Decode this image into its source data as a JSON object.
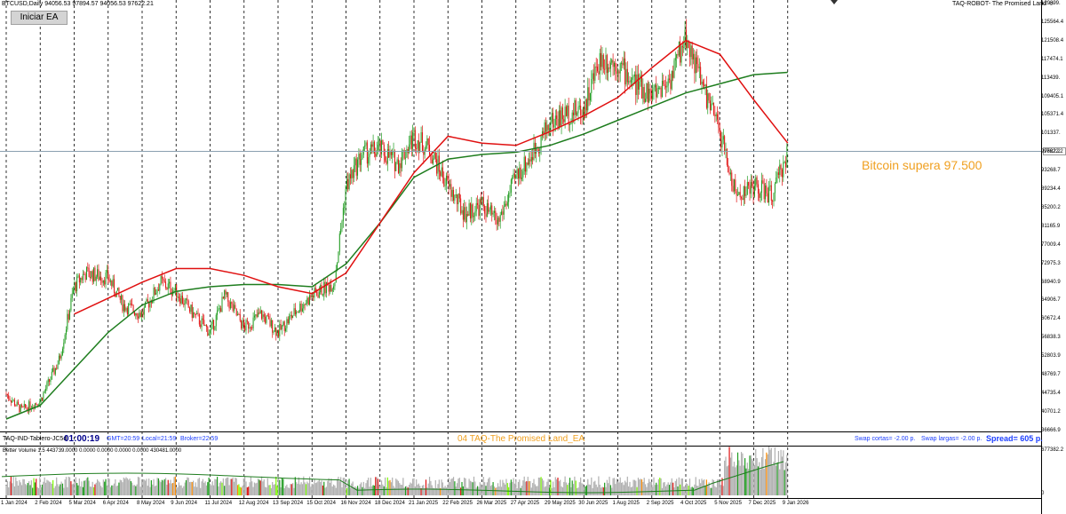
{
  "header": {
    "symbol_info": "BTCUSD,Daily  94056.53 97894.57 94056.53 97622.21",
    "robot_title": "TAQ-ROBOT- The Promised Land ☺",
    "ea_button": "Iniciar EA"
  },
  "annotation": "Bitcoin supera 97.500",
  "current_price": "97622.2",
  "status_bar": {
    "indicator_name": "TAQ-IND-Tablero-JC5d",
    "timer": "01:00:19",
    "gmt": "GMT=20:59",
    "local": "Local=21:59",
    "broker": "Broker=22:59",
    "center_title": "04 TAQ-The Promised Land_EA",
    "swap_short": "Swap cortas= -2.00 p.",
    "swap_long": "Swap largas= -2.00 p.",
    "spread": "Spread= 605 p."
  },
  "volume_panel": {
    "label": "Better Volume 1.5 443739.0000 0.0000 0.0000 0.0000 0.0000 430481.0000",
    "scale_top": "677382.2",
    "scale_bottom": "0"
  },
  "colors": {
    "bull": "#1e9b1e",
    "bear": "#e01010",
    "ma_slow": "#1e7d1e",
    "ma_fast": "#e01010",
    "annotation": "#f0a020",
    "status_blue": "#1e40ff"
  },
  "price_axis": [
    "129899.",
    "125564.4",
    "121508.4",
    "117474.1",
    "113439.",
    "109405.1",
    "105371.4",
    "101337.",
    "97622.2",
    "93268.7",
    "89234.4",
    "85200.2",
    "81165.9",
    "77009.4",
    "72975.3",
    "68940.9",
    "64906.7",
    "60672.4",
    "56838.3",
    "52803.9",
    "48769.7",
    "44735.4",
    "40701.2",
    "36666.9"
  ],
  "date_axis": [
    "1 Jan 2024",
    "2 Feb 2024",
    "5 Mar 2024",
    "6 Apr 2024",
    "8 May 2024",
    "9 Jun 2024",
    "11 Jul 2024",
    "12 Aug 2024",
    "13 Sep 2024",
    "15 Oct 2024",
    "16 Nov 2024",
    "18 Dec 2024",
    "21 Jan 2025",
    "22 Feb 2025",
    "26 Mar 2025",
    "27 Apr 2025",
    "29 May 2025",
    "30 Jun 2025",
    "1 Aug 2025",
    "2 Sep 2025",
    "4 Oct 2025",
    "5 Nov 2025",
    "7 Dec 2025",
    "9 Jan 2026"
  ],
  "chart_data": {
    "type": "line",
    "title": "BTCUSD,Daily",
    "xlabel": "",
    "ylabel": "",
    "ylim": [
      36666.9,
      129899
    ],
    "grid": "vertical dashed",
    "series": [
      {
        "x": [
          "1 Jan 2024",
          "15 Jan 2024",
          "2 Feb 2024",
          "20 Feb 2024",
          "5 Mar 2024",
          "15 Mar 2024",
          "6 Apr 2024",
          "20 Apr 2024",
          "8 May 2024",
          "25 May 2024",
          "9 Jun 2024",
          "25 Jun 2024",
          "11 Jul 2024",
          "25 Jul 2024",
          "12 Aug 2024",
          "28 Aug 2024",
          "13 Sep 2024",
          "1 Oct 2024",
          "15 Oct 2024",
          "5 Nov 2024",
          "16 Nov 2024",
          "1 Dec 2024",
          "18 Dec 2024",
          "5 Jan 2025",
          "21 Jan 2025",
          "5 Feb 2025",
          "22 Feb 2025",
          "10 Mar 2025",
          "26 Mar 2025",
          "10 Apr 2025",
          "27 Apr 2025",
          "12 May 2025",
          "29 May 2025",
          "15 Jun 2025",
          "30 Jun 2025",
          "15 Jul 2025",
          "1 Aug 2025",
          "15 Aug 2025",
          "2 Sep 2025",
          "20 Sep 2025",
          "4 Oct 2025",
          "20 Oct 2025",
          "5 Nov 2025",
          "20 Nov 2025",
          "7 Dec 2025",
          "25 Dec 2025",
          "9 Jan 2026"
        ],
        "values": [
          44500,
          41000,
          43000,
          52000,
          68000,
          71000,
          70000,
          64000,
          62000,
          69000,
          67000,
          62000,
          58000,
          66000,
          59000,
          62000,
          58000,
          63000,
          66000,
          69000,
          90000,
          97000,
          98000,
          95000,
          101000,
          98000,
          90000,
          84000,
          86000,
          82000,
          92000,
          97000,
          104000,
          106000,
          107000,
          118000,
          117000,
          113000,
          110000,
          114000,
          123000,
          112000,
          102000,
          88000,
          90000,
          88000,
          97622
        ]
      },
      {
        "x": [
          "1 Jan 2024",
          "2 Feb 2024",
          "5 Mar 2024",
          "6 Apr 2024",
          "8 May 2024",
          "9 Jun 2024",
          "11 Jul 2024",
          "12 Aug 2024",
          "13 Sep 2024",
          "15 Oct 2024",
          "16 Nov 2024",
          "18 Dec 2024",
          "21 Jan 2025",
          "22 Feb 2025",
          "26 Mar 2025",
          "27 Apr 2025",
          "29 May 2025",
          "30 Jun 2025",
          "1 Aug 2025",
          "2 Sep 2025",
          "4 Oct 2025",
          "5 Nov 2025",
          "7 Dec 2025",
          "9 Jan 2026"
        ],
        "values": [
          39000,
          42000,
          50000,
          58000,
          64000,
          67000,
          68000,
          68500,
          68500,
          68000,
          73000,
          82000,
          92000,
          96000,
          97000,
          97500,
          99000,
          101500,
          104500,
          107500,
          110500,
          112500,
          114500,
          115000
        ]
      },
      {
        "x": [
          "5 Mar 2024",
          "6 Apr 2024",
          "8 May 2024",
          "9 Jun 2024",
          "11 Jul 2024",
          "12 Aug 2024",
          "13 Sep 2024",
          "15 Oct 2024",
          "16 Nov 2024",
          "18 Dec 2024",
          "21 Jan 2025",
          "22 Feb 2025",
          "26 Mar 2025",
          "27 Apr 2025",
          "29 May 2025",
          "30 Jun 2025",
          "1 Aug 2025",
          "2 Sep 2025",
          "4 Oct 2025",
          "5 Nov 2025",
          "7 Dec 2025",
          "9 Jan 2026"
        ],
        "values": [
          62000,
          65500,
          69000,
          72000,
          72000,
          70500,
          68000,
          66500,
          71000,
          82000,
          93000,
          101000,
          99500,
          99000,
          102000,
          105500,
          109500,
          116000,
          122000,
          119000,
          109000,
          99500
        ]
      }
    ]
  }
}
